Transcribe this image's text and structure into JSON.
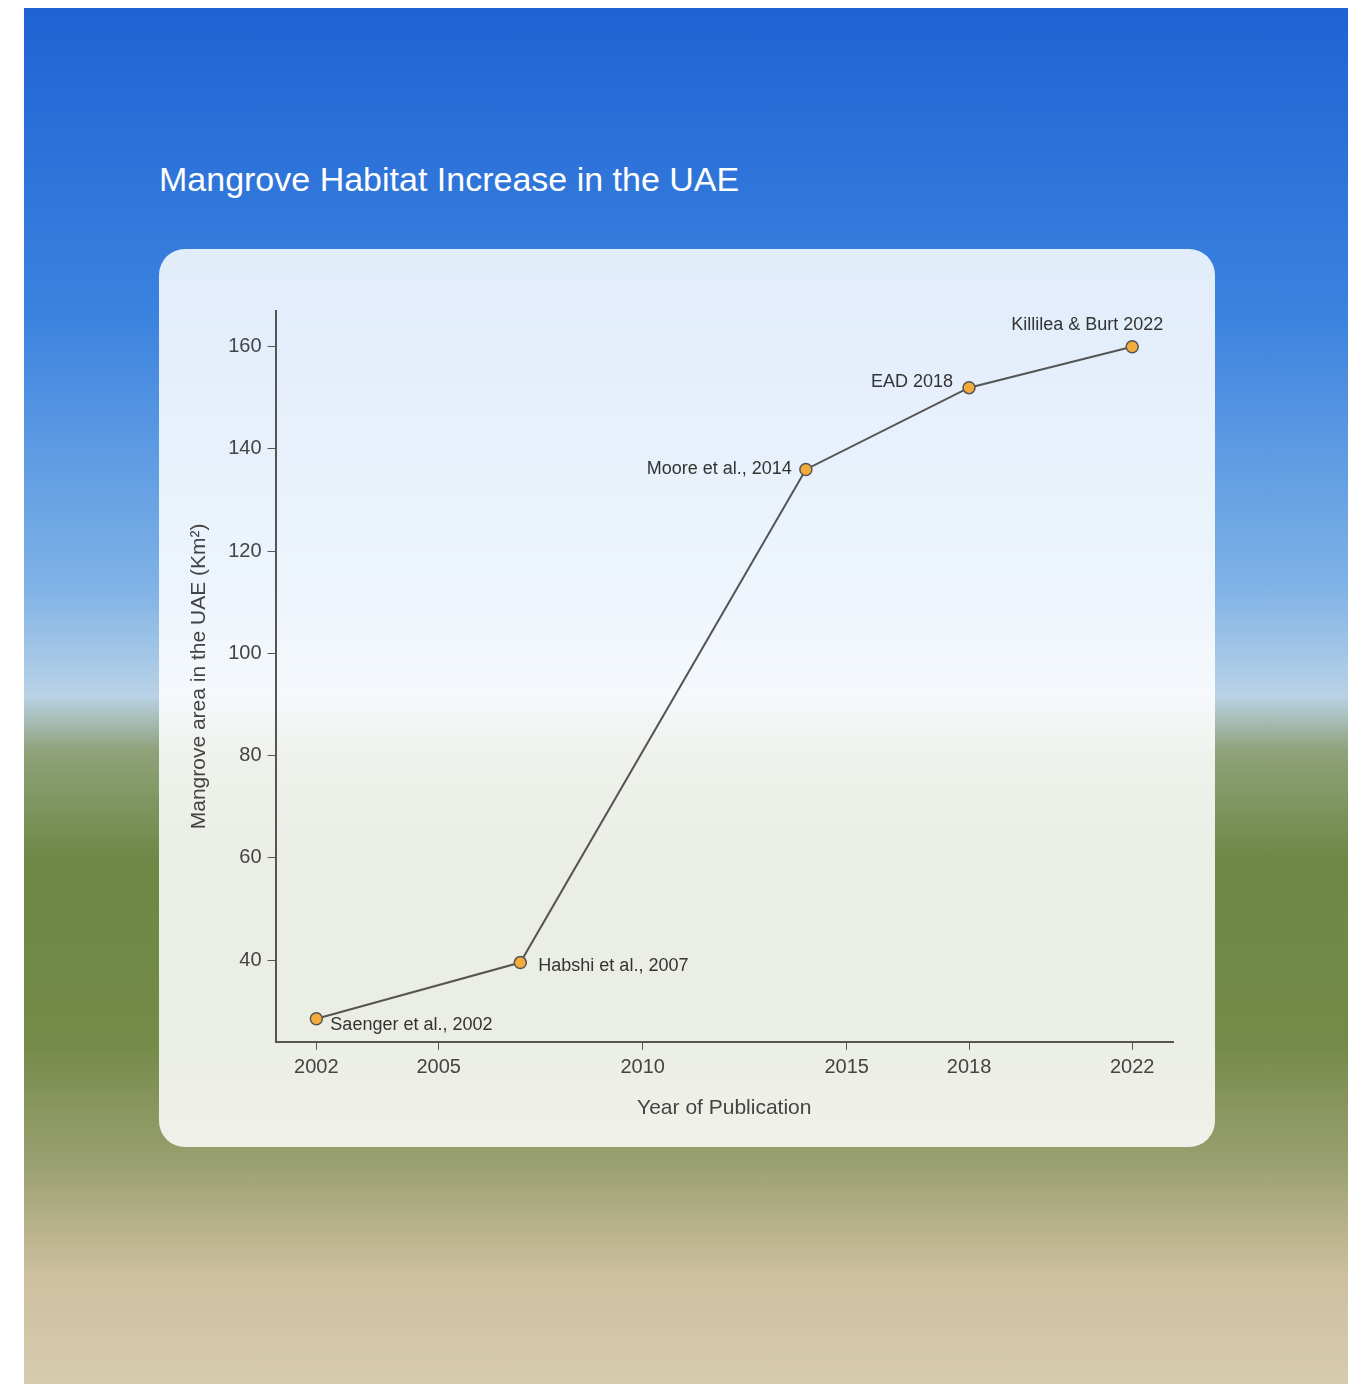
{
  "chart_data": {
    "type": "line",
    "title": "Mangrove Habitat Increase in the UAE",
    "x_label": "Year of Publication",
    "y_label": "Mangrove area in the UAE (Km²)",
    "x": [
      2002,
      2007,
      2014,
      2018,
      2022
    ],
    "values": [
      28.5,
      39.5,
      136,
      152,
      160
    ],
    "annotations": [
      "Saenger et al., 2002",
      "Habshi et al., 2007",
      "Moore et al., 2014",
      "EAD 2018",
      "Killilea & Burt 2022"
    ],
    "color": "#555555",
    "marker": "circle",
    "xlim": [
      2001,
      2023
    ],
    "xticks": [
      2002,
      2005,
      2010,
      2015,
      2018,
      2022
    ],
    "ylim": [
      24,
      167
    ],
    "yticks": [
      40,
      60,
      80,
      100,
      120,
      140,
      160
    ],
    "grid": false
  }
}
